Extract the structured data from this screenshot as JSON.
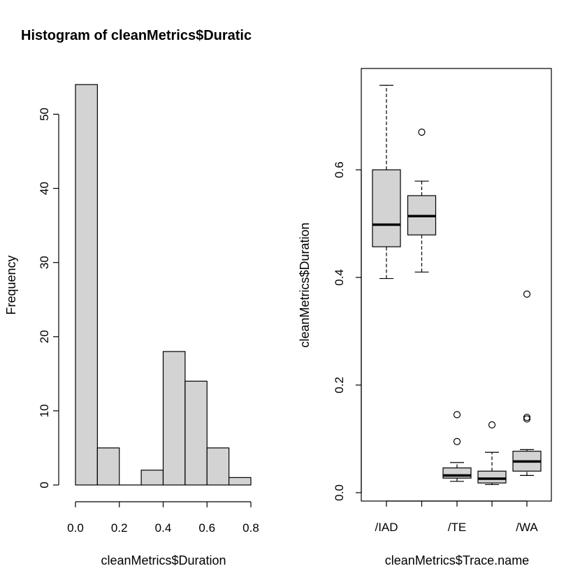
{
  "chart_data": [
    {
      "type": "bar",
      "subtype": "histogram",
      "title": "Histogram of cleanMetrics$Duratic",
      "xlabel": "cleanMetrics$Duration",
      "ylabel": "Frequency",
      "bins": [
        {
          "x0": 0.0,
          "x1": 0.1,
          "count": 54
        },
        {
          "x0": 0.1,
          "x1": 0.2,
          "count": 5
        },
        {
          "x0": 0.2,
          "x1": 0.3,
          "count": 0
        },
        {
          "x0": 0.3,
          "x1": 0.4,
          "count": 2
        },
        {
          "x0": 0.4,
          "x1": 0.5,
          "count": 18
        },
        {
          "x0": 0.5,
          "x1": 0.6,
          "count": 14
        },
        {
          "x0": 0.6,
          "x1": 0.7,
          "count": 5
        },
        {
          "x0": 0.7,
          "x1": 0.8,
          "count": 1
        }
      ],
      "xlim": [
        0.0,
        0.8
      ],
      "ylim": [
        0,
        54
      ],
      "xticks": [
        0.0,
        0.2,
        0.4,
        0.6,
        0.8
      ],
      "xtick_labels": [
        "0.0",
        "0.2",
        "0.4",
        "0.6",
        "0.8"
      ],
      "yticks": [
        0,
        10,
        20,
        30,
        40,
        50
      ],
      "ytick_labels": [
        "0",
        "10",
        "20",
        "30",
        "40",
        "50"
      ],
      "grid": false
    },
    {
      "type": "boxplot",
      "title": "",
      "xlabel": "cleanMetrics$Trace.name",
      "ylabel": "cleanMetrics$Duration",
      "ylim": [
        0.0,
        0.76
      ],
      "yticks": [
        0.0,
        0.2,
        0.4,
        0.6
      ],
      "ytick_labels": [
        "0.0",
        "0.2",
        "0.4",
        "0.6"
      ],
      "xtick_labels": [
        "/IAD",
        "",
        "/TE",
        "",
        "/WA"
      ],
      "boxes": [
        {
          "whisker_low": 0.398,
          "q1": 0.457,
          "median": 0.498,
          "q3": 0.6,
          "whisker_high": 0.757,
          "outliers": []
        },
        {
          "whisker_low": 0.41,
          "q1": 0.479,
          "median": 0.514,
          "q3": 0.552,
          "whisker_high": 0.579,
          "outliers": [
            0.67
          ]
        },
        {
          "whisker_low": 0.021,
          "q1": 0.027,
          "median": 0.032,
          "q3": 0.046,
          "whisker_high": 0.056,
          "outliers": [
            0.095,
            0.145
          ]
        },
        {
          "whisker_low": 0.015,
          "q1": 0.018,
          "median": 0.026,
          "q3": 0.04,
          "whisker_high": 0.075,
          "outliers": [
            0.126
          ]
        },
        {
          "whisker_low": 0.032,
          "q1": 0.04,
          "median": 0.058,
          "q3": 0.077,
          "whisker_high": 0.08,
          "outliers": [
            0.137,
            0.14,
            0.369
          ]
        }
      ],
      "grid": false
    }
  ]
}
